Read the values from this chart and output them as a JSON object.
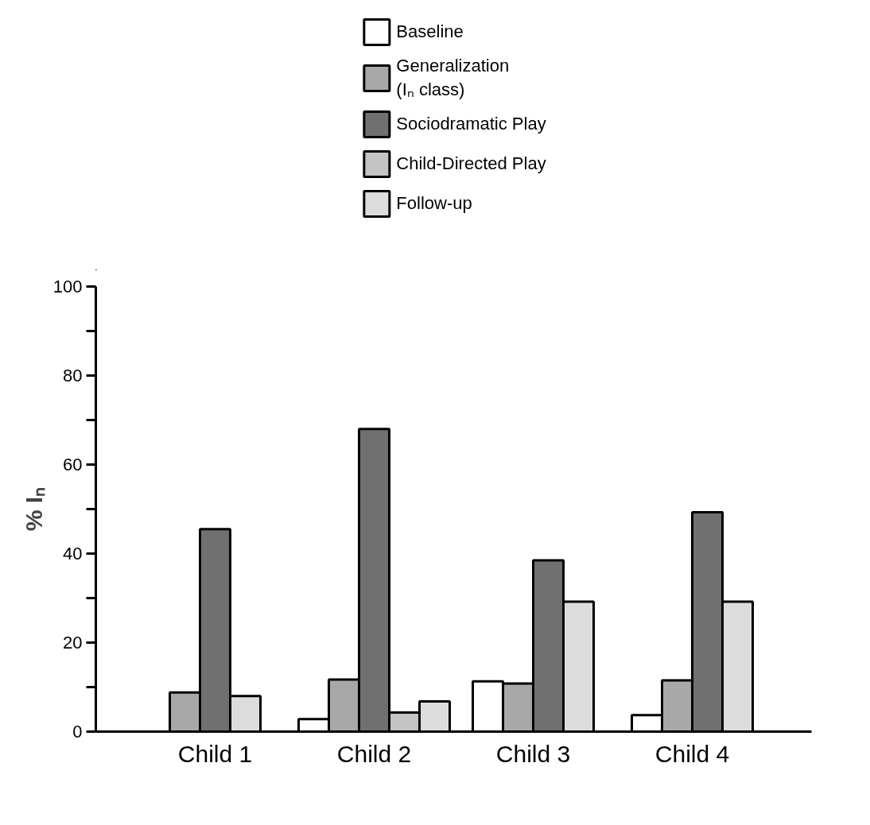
{
  "chart_data": {
    "type": "bar",
    "ylabel": "% Iₙ",
    "ylim": [
      0,
      100
    ],
    "categories": [
      "Child 1",
      "Child 2",
      "Child 3",
      "Child 4"
    ],
    "yticks": [
      0,
      {
        "value": 10,
        "label": null
      },
      20,
      {
        "value": 30,
        "label": null
      },
      40,
      {
        "value": 50,
        "label": null
      },
      60,
      {
        "value": 70,
        "label": null
      },
      80,
      {
        "value": 90,
        "label": null
      },
      100
    ],
    "series": [
      {
        "name": "Baseline",
        "color": "#ffffff",
        "values": [
          null,
          2.8,
          11.3,
          3.7
        ]
      },
      {
        "name": "Generalization\n(Iₙ class)",
        "color": "#a8a8a8",
        "values": [
          8.8,
          11.7,
          10.8,
          11.5
        ]
      },
      {
        "name": "Sociodramatic Play",
        "color": "#707070",
        "values": [
          45.5,
          68,
          38.5,
          49.3
        ]
      },
      {
        "name": "Child-Directed Play",
        "color": "#c4c4c4",
        "values": [
          null,
          4.3,
          null,
          null
        ]
      },
      {
        "name": "Follow-up",
        "color": "#dcdcdc",
        "values": [
          8,
          6.8,
          29.2,
          29.2
        ]
      }
    ],
    "grid": false,
    "legend": "top"
  }
}
